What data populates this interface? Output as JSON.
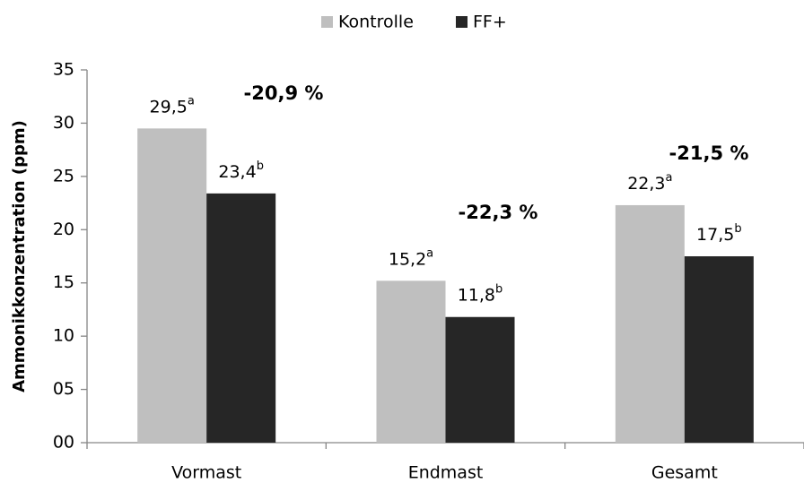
{
  "chart_data": {
    "type": "bar",
    "y_label": "Ammonikkonzentration (ppm)",
    "categories": [
      "Vormast",
      "Endmast",
      "Gesamt"
    ],
    "series": [
      {
        "name": "Kontrolle",
        "color": "#bfbfbf",
        "values": [
          29.5,
          15.2,
          22.3
        ],
        "value_labels": [
          "29,5",
          "15,2",
          "22,3"
        ],
        "letters": [
          "a",
          "a",
          "a"
        ]
      },
      {
        "name": "FF+",
        "color": "#262626",
        "values": [
          23.4,
          11.8,
          17.5
        ],
        "value_labels": [
          "23,4",
          "11,8",
          "17,5"
        ],
        "letters": [
          "b",
          "b",
          "b"
        ]
      }
    ],
    "annotations": [
      "-20,9 %",
      "-22,3 %",
      "-21,5 %"
    ],
    "ylim": [
      0,
      35
    ],
    "yticks": [
      {
        "value": 0,
        "label": "00"
      },
      {
        "value": 5,
        "label": "05"
      },
      10,
      15,
      20,
      25,
      30,
      35
    ],
    "legend": "top"
  }
}
